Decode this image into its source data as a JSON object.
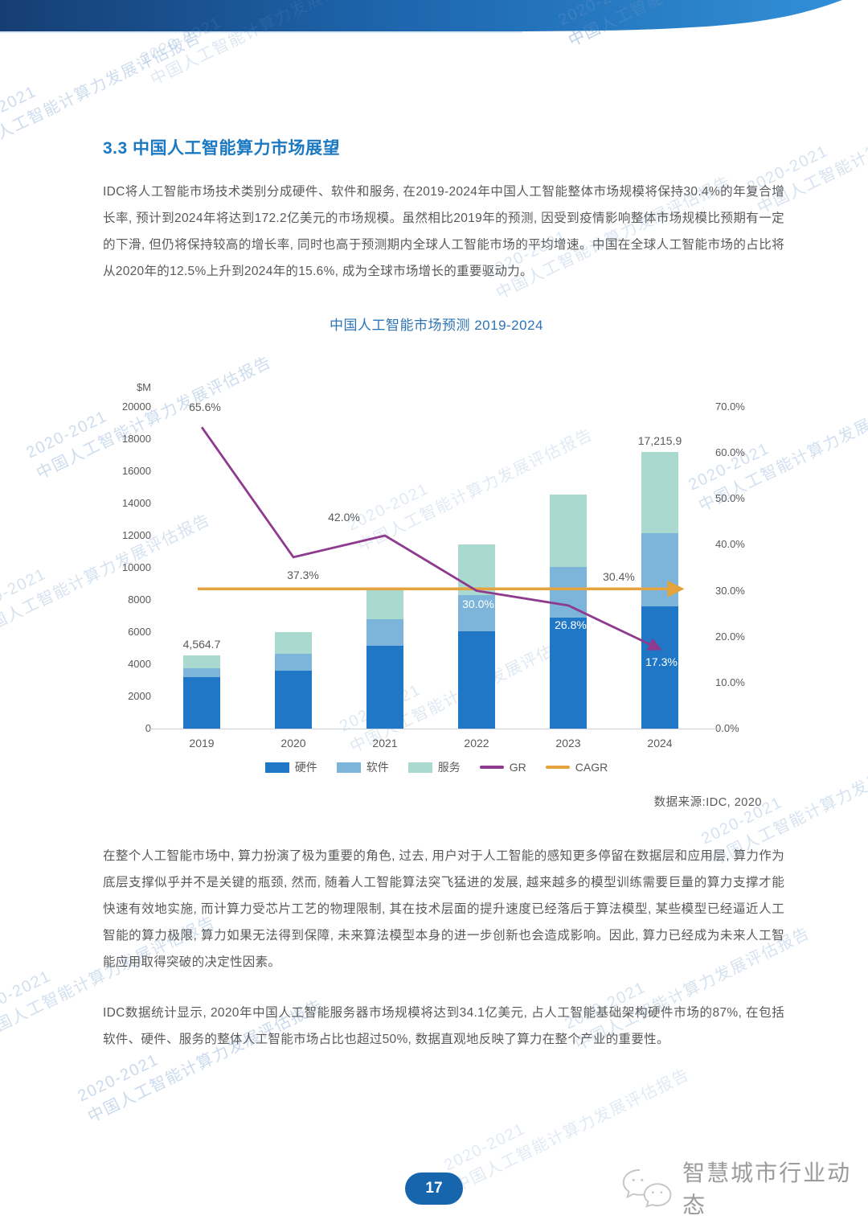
{
  "watermark": {
    "line1": "2020-2021",
    "line2": "中国人工智能计算力发展评估报告"
  },
  "section": {
    "heading": "3.3 中国人工智能算力市场展望",
    "paragraph1": "IDC将人工智能市场技术类别分成硬件、软件和服务, 在2019-2024年中国人工智能整体市场规模将保持30.4%的年复合增长率, 预计到2024年将达到172.2亿美元的市场规模。虽然相比2019年的预测, 因受到疫情影响整体市场规模比预期有一定的下滑, 但仍将保持较高的增长率, 同时也高于预测期内全球人工智能市场的平均增速。中国在全球人工智能市场的占比将从2020年的12.5%上升到2024年的15.6%, 成为全球市场增长的重要驱动力。",
    "paragraph2": "在整个人工智能市场中, 算力扮演了极为重要的角色, 过去, 用户对于人工智能的感知更多停留在数据层和应用层, 算力作为底层支撑似乎并不是关键的瓶颈, 然而, 随着人工智能算法突飞猛进的发展, 越来越多的模型训练需要巨量的算力支撑才能快速有效地实施, 而计算力受芯片工艺的物理限制, 其在技术层面的提升速度已经落后于算法模型, 某些模型已经逼近人工智能的算力极限, 算力如果无法得到保障, 未来算法模型本身的进一步创新也会造成影响。因此, 算力已经成为未来人工智能应用取得突破的决定性因素。",
    "paragraph3": "IDC数据统计显示, 2020年中国人工智能服务器市场规模将达到34.1亿美元, 占人工智能基础架构硬件市场的87%, 在包括软件、硬件、服务的整体人工智能市场占比也超过50%, 数据直观地反映了算力在整个产业的重要性。"
  },
  "chart_data": {
    "type": "bar",
    "subtype": "stacked-bars-with-lines",
    "title": "中国人工智能市场预测 2019-2024",
    "categories": [
      "2019",
      "2020",
      "2021",
      "2022",
      "2023",
      "2024"
    ],
    "series": [
      {
        "name": "硬件",
        "kind": "bar",
        "color": "#2077c5",
        "values": [
          3200,
          3600,
          5150,
          6050,
          6900,
          7600
        ]
      },
      {
        "name": "软件",
        "kind": "bar",
        "color": "#7cb4da",
        "values": [
          560,
          1050,
          1650,
          2250,
          3150,
          4550
        ]
      },
      {
        "name": "服务",
        "kind": "bar",
        "color": "#aad9cf",
        "values": [
          804.7,
          1350,
          1900,
          3150,
          4500,
          5065.9
        ]
      },
      {
        "name": "GR",
        "kind": "line",
        "color": "#8e3a8e",
        "values": [
          65.6,
          37.3,
          42.0,
          30.0,
          26.8,
          17.3
        ]
      },
      {
        "name": "CAGR",
        "kind": "line",
        "color": "#e5a33e",
        "values": [
          30.4,
          30.4,
          30.4,
          30.4,
          30.4,
          30.4
        ]
      }
    ],
    "bar_total_labels": [
      "4,564.7",
      "",
      "",
      "",
      "",
      "17,215.9"
    ],
    "gr_point_labels": [
      "65.6%",
      "37.3%",
      "42.0%",
      "30.0%",
      "26.8%",
      "17.3%"
    ],
    "cagr_label": "30.4%",
    "left_axis": {
      "unit": "$M",
      "min": 0,
      "max": 20000,
      "ticks": [
        "20000",
        "18000",
        "16000",
        "14000",
        "12000",
        "10000",
        "8000",
        "6000",
        "4000",
        "2000",
        "0"
      ]
    },
    "right_axis": {
      "min": 0,
      "max": 70,
      "ticks": [
        "70.0%",
        "60.0%",
        "50.0%",
        "40.0%",
        "30.0%",
        "20.0%",
        "10.0%",
        "0.0%"
      ]
    },
    "legend_position": "bottom",
    "grid": false
  },
  "source": "数据来源:IDC, 2020",
  "footer": {
    "page_number": "17",
    "brand": "智慧城市行业动态"
  }
}
